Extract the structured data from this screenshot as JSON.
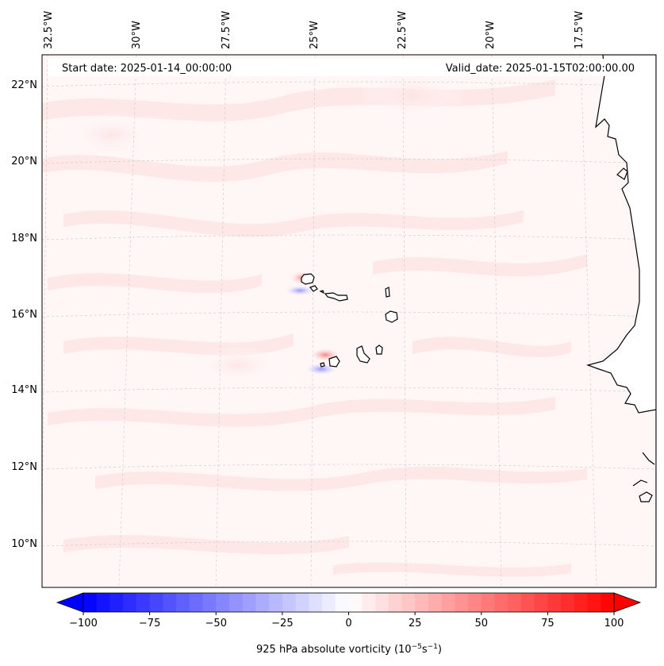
{
  "header": {
    "start_date": "Start date: 2025-01-14_00:00:00",
    "valid_date": "Valid_date: 2025-01-15T02:00:00.00"
  },
  "longitude_labels": [
    "32.5°W",
    "30°W",
    "27.5°W",
    "25°W",
    "22.5°W",
    "20°W",
    "17.5°W"
  ],
  "latitude_labels": [
    "22°N",
    "20°N",
    "18°N",
    "16°N",
    "14°N",
    "12°N",
    "10°N"
  ],
  "colorbar": {
    "label_prefix": "925 hPa absolute vorticity (10",
    "exp1": "−5",
    "label_mid": "s",
    "exp2": "−1",
    "label_suffix": ")",
    "ticks": [
      "−100",
      "−75",
      "−50",
      "−25",
      "0",
      "25",
      "50",
      "75",
      "100"
    ],
    "min": -100,
    "max": 100,
    "step": 5,
    "colormap": "bwr",
    "low_color": "#0000ff",
    "mid_color": "#ffffff",
    "high_color": "#ff0000"
  },
  "style": {
    "coastline_color": "#000000",
    "gridline_color": "#c8c8c8",
    "field_tint": "#fff2f2"
  }
}
